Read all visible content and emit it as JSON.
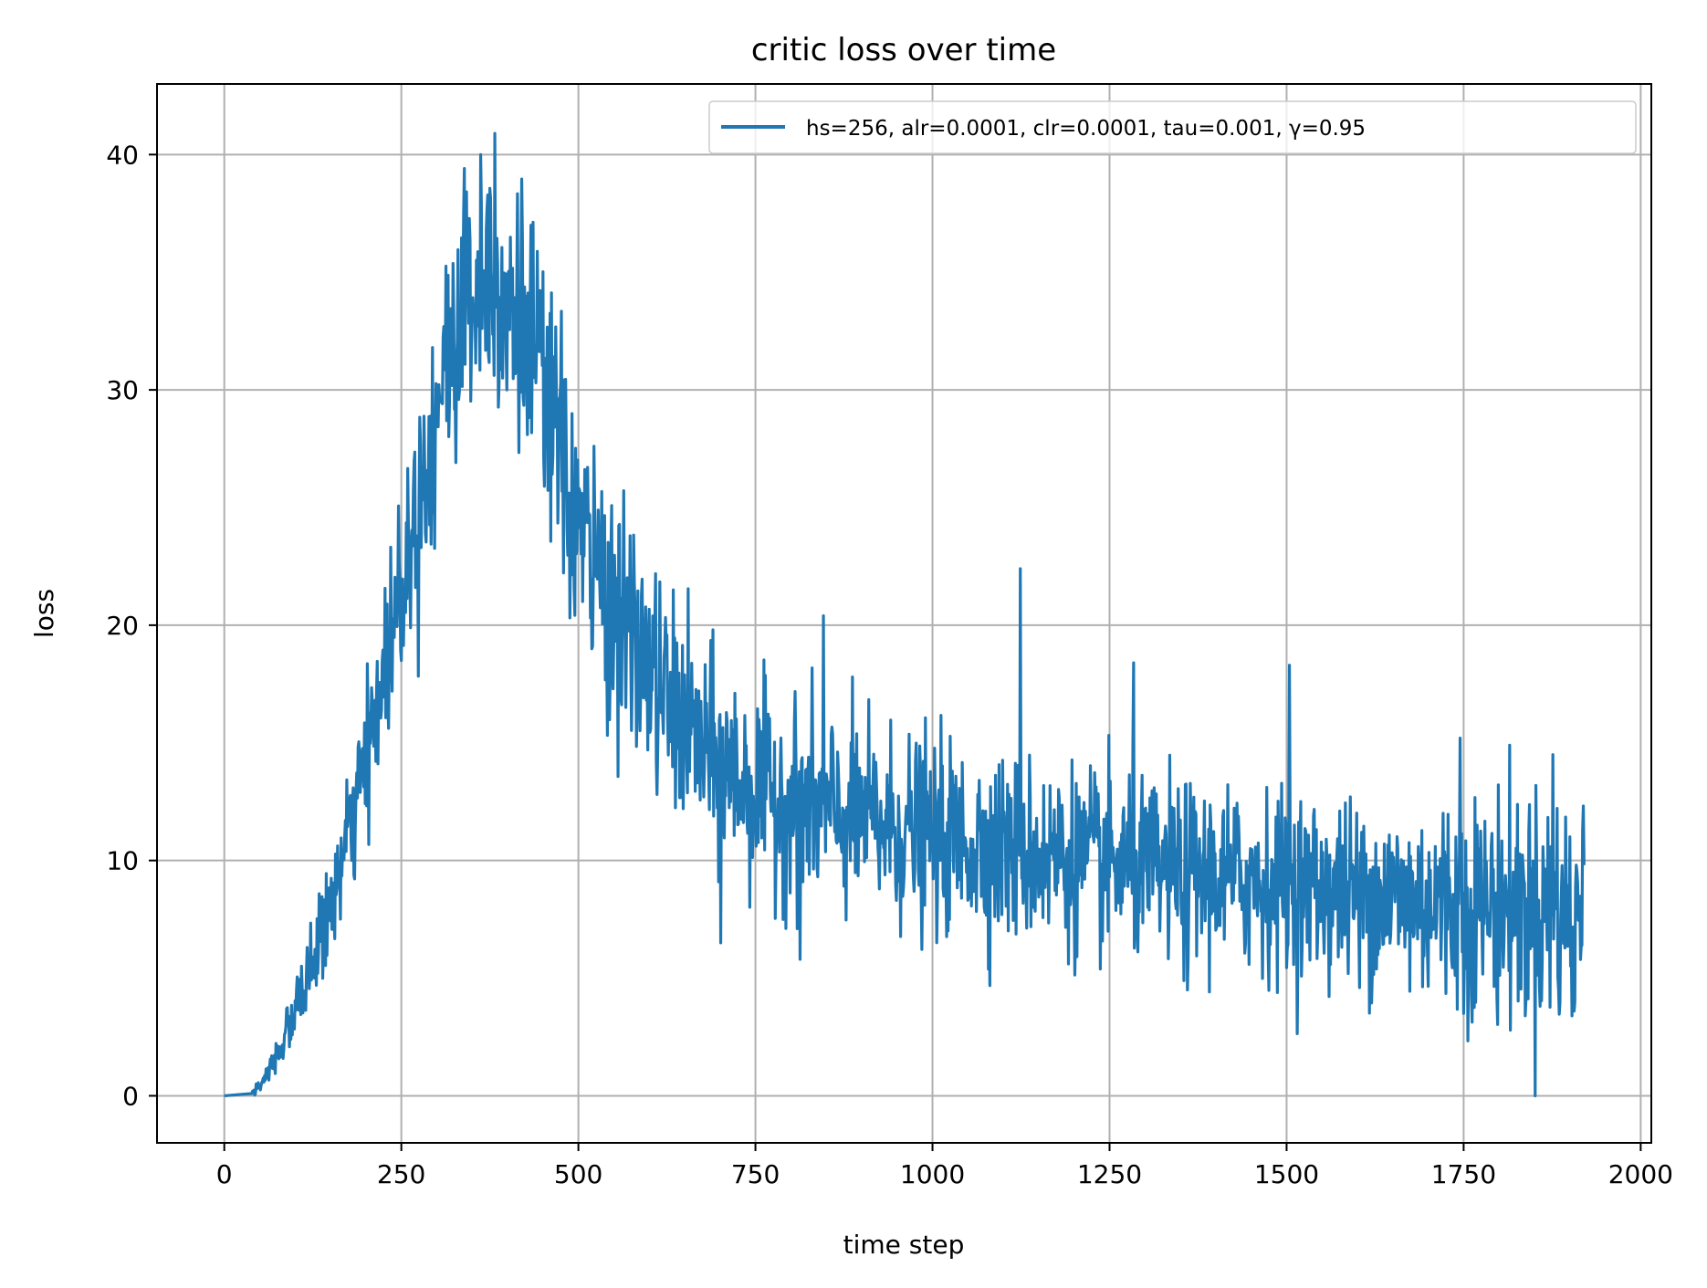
{
  "chart_data": {
    "type": "line",
    "title": "critic loss over time",
    "xlabel": "time step",
    "ylabel": "loss",
    "xlim": [
      -95,
      2015
    ],
    "ylim": [
      -2,
      43
    ],
    "xticks": [
      0,
      250,
      500,
      750,
      1000,
      1250,
      1500,
      1750,
      2000
    ],
    "yticks": [
      0,
      10,
      20,
      30,
      40
    ],
    "grid": true,
    "legend_position": "top-right",
    "series": [
      {
        "name": "hs=256, alr=0.0001, clr=0.0001, tau=0.001, γ=0.95",
        "color": "#1f77b4",
        "x_range": [
          0,
          1920
        ],
        "trend_keypoints": {
          "x": [
            0,
            40,
            60,
            100,
            150,
            200,
            250,
            300,
            340,
            380,
            420,
            460,
            500,
            560,
            620,
            680,
            750,
            850,
            1000,
            1150,
            1300,
            1500,
            1700,
            1920
          ],
          "y": [
            0,
            0.1,
            0.8,
            3.5,
            8,
            14,
            22,
            29,
            34,
            35.5,
            33,
            29,
            24,
            20,
            17,
            14.5,
            13,
            12,
            11,
            10.3,
            9.6,
            9,
            8.3,
            7.8
          ]
        },
        "noise_amplitude": {
          "x": [
            0,
            40,
            100,
            200,
            300,
            400,
            500,
            700,
            1000,
            1300,
            1600,
            1800,
            1920
          ],
          "y": [
            0,
            0.1,
            0.6,
            1.5,
            2.6,
            3.0,
            2.6,
            2.1,
            2.0,
            1.9,
            1.9,
            2.4,
            2.6
          ]
        },
        "highlight_points": [
          {
            "x": 382,
            "y": 40.9
          },
          {
            "x": 362,
            "y": 40.0
          },
          {
            "x": 399,
            "y": 30.0
          },
          {
            "x": 458,
            "y": 26.0
          },
          {
            "x": 1124,
            "y": 22.4
          },
          {
            "x": 846,
            "y": 20.4
          },
          {
            "x": 1284,
            "y": 18.4
          },
          {
            "x": 1504,
            "y": 18.3
          },
          {
            "x": 1745,
            "y": 15.2
          },
          {
            "x": 1876,
            "y": 14.5
          },
          {
            "x": 701,
            "y": 6.5
          },
          {
            "x": 813,
            "y": 5.8
          },
          {
            "x": 1360,
            "y": 4.5
          },
          {
            "x": 1603,
            "y": 4.6
          },
          {
            "x": 1750,
            "y": 3.5
          },
          {
            "x": 1903,
            "y": 3.4
          }
        ],
        "end_value": 9.8
      }
    ]
  }
}
